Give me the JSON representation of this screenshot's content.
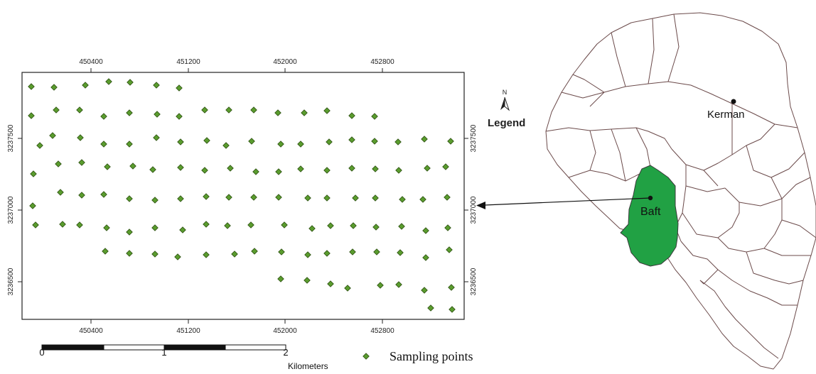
{
  "map": {
    "x_ticks": [
      "450400",
      "451200",
      "452000",
      "452800"
    ],
    "y_ticks": [
      "3237500",
      "3237000",
      "3236500"
    ],
    "sampling_points": [
      [
        44,
        122
      ],
      [
        76,
        123
      ],
      [
        120,
        120
      ],
      [
        153,
        115
      ],
      [
        183,
        116
      ],
      [
        220,
        120
      ],
      [
        252,
        124
      ],
      [
        44,
        163
      ],
      [
        79,
        155
      ],
      [
        112,
        155
      ],
      [
        146,
        164
      ],
      [
        182,
        159
      ],
      [
        221,
        161
      ],
      [
        252,
        164
      ],
      [
        288,
        155
      ],
      [
        322,
        155
      ],
      [
        357,
        155
      ],
      [
        391,
        159
      ],
      [
        428,
        159
      ],
      [
        460,
        156
      ],
      [
        495,
        163
      ],
      [
        527,
        164
      ],
      [
        56,
        205
      ],
      [
        74,
        191
      ],
      [
        113,
        194
      ],
      [
        146,
        203
      ],
      [
        182,
        203
      ],
      [
        220,
        194
      ],
      [
        254,
        200
      ],
      [
        291,
        198
      ],
      [
        318,
        205
      ],
      [
        354,
        199
      ],
      [
        395,
        203
      ],
      [
        423,
        203
      ],
      [
        463,
        200
      ],
      [
        495,
        197
      ],
      [
        527,
        199
      ],
      [
        560,
        200
      ],
      [
        597,
        196
      ],
      [
        634,
        199
      ],
      [
        47,
        245
      ],
      [
        82,
        231
      ],
      [
        115,
        229
      ],
      [
        151,
        235
      ],
      [
        187,
        234
      ],
      [
        215,
        239
      ],
      [
        254,
        236
      ],
      [
        288,
        240
      ],
      [
        324,
        237
      ],
      [
        360,
        242
      ],
      [
        392,
        242
      ],
      [
        423,
        238
      ],
      [
        460,
        240
      ],
      [
        495,
        237
      ],
      [
        528,
        238
      ],
      [
        561,
        240
      ],
      [
        601,
        237
      ],
      [
        627,
        235
      ],
      [
        46,
        290
      ],
      [
        85,
        271
      ],
      [
        115,
        275
      ],
      [
        146,
        274
      ],
      [
        182,
        280
      ],
      [
        218,
        282
      ],
      [
        254,
        280
      ],
      [
        290,
        277
      ],
      [
        322,
        278
      ],
      [
        357,
        278
      ],
      [
        392,
        278
      ],
      [
        433,
        279
      ],
      [
        460,
        279
      ],
      [
        500,
        279
      ],
      [
        528,
        279
      ],
      [
        566,
        281
      ],
      [
        595,
        281
      ],
      [
        629,
        278
      ],
      [
        50,
        317
      ],
      [
        88,
        316
      ],
      [
        112,
        317
      ],
      [
        150,
        321
      ],
      [
        182,
        327
      ],
      [
        218,
        321
      ],
      [
        257,
        324
      ],
      [
        290,
        316
      ],
      [
        320,
        318
      ],
      [
        353,
        317
      ],
      [
        400,
        317
      ],
      [
        439,
        322
      ],
      [
        465,
        318
      ],
      [
        497,
        318
      ],
      [
        529,
        320
      ],
      [
        565,
        319
      ],
      [
        599,
        325
      ],
      [
        630,
        321
      ],
      [
        148,
        354
      ],
      [
        182,
        357
      ],
      [
        218,
        358
      ],
      [
        250,
        362
      ],
      [
        290,
        359
      ],
      [
        330,
        358
      ],
      [
        358,
        354
      ],
      [
        396,
        355
      ],
      [
        433,
        359
      ],
      [
        460,
        357
      ],
      [
        496,
        355
      ],
      [
        530,
        355
      ],
      [
        563,
        356
      ],
      [
        599,
        363
      ],
      [
        632,
        352
      ],
      [
        395,
        393
      ],
      [
        432,
        395
      ],
      [
        465,
        400
      ],
      [
        489,
        406
      ],
      [
        535,
        402
      ],
      [
        561,
        401
      ],
      [
        597,
        409
      ],
      [
        635,
        405
      ],
      [
        606,
        434
      ],
      [
        636,
        436
      ]
    ],
    "kerman_label": "Kerman",
    "baft_label": "Baft",
    "north_label": "N",
    "legend_title": "Legend",
    "colors": {
      "baft_fill": "#21a144",
      "point_fill": "#5a9c2e",
      "point_stroke": "#2d4f12",
      "border": "#6b4a4a"
    }
  },
  "scalebar": {
    "labels": [
      "0",
      "1",
      "2"
    ],
    "unit": "Kilometers"
  },
  "legend": {
    "sampling_label": "Sampling points"
  }
}
